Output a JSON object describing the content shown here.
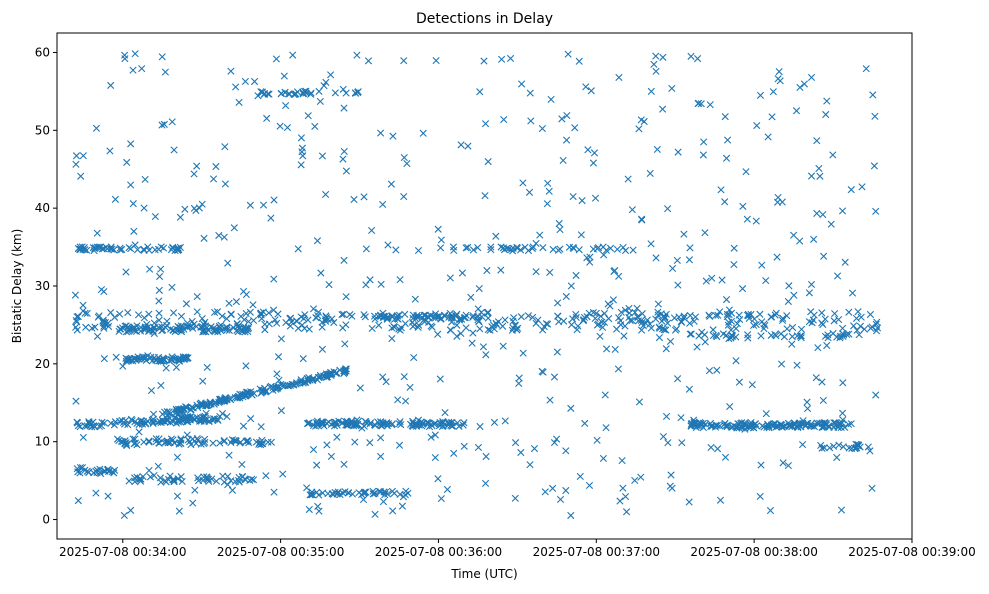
{
  "chart_data": {
    "type": "scatter",
    "title": "Detections in Delay",
    "xlabel": "Time (UTC)",
    "ylabel": "Bistatic Delay (km)",
    "x_ticks": [
      "2025-07-08 00:34:00",
      "2025-07-08 00:35:00",
      "2025-07-08 00:36:00",
      "2025-07-08 00:37:00",
      "2025-07-08 00:38:00",
      "2025-07-08 00:39:00"
    ],
    "y_ticks": [
      "0",
      "10",
      "20",
      "30",
      "40",
      "50",
      "60"
    ],
    "xlim": [
      "2025-07-08 00:33:35",
      "2025-07-08 00:39:00"
    ],
    "ylim": [
      -2.5,
      62.5
    ],
    "marker": "x",
    "grid": false,
    "legend": "none",
    "series_color": "#1f77b4",
    "series": [
      {
        "time_range": [
          "2025-07-08 00:33:42",
          "2025-07-08 00:38:47"
        ],
        "x": [],
        "y": []
      }
    ]
  }
}
